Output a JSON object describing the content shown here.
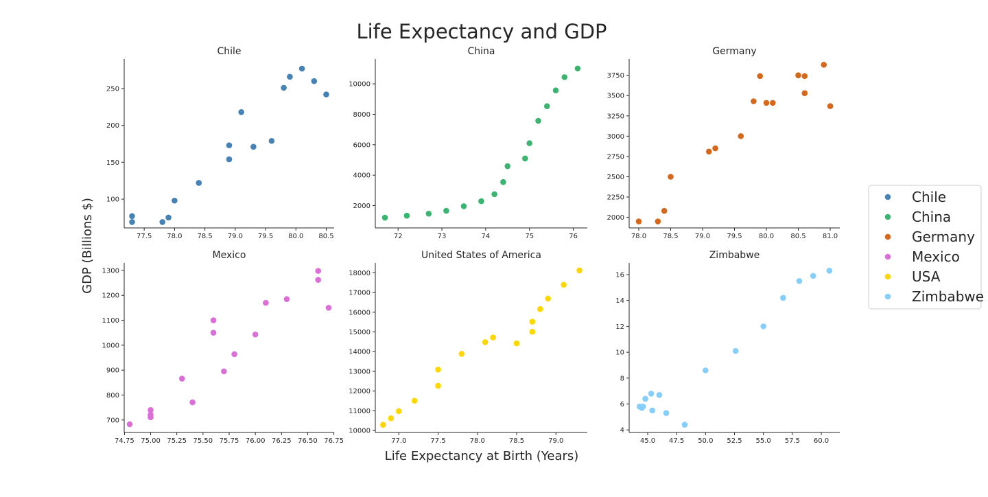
{
  "figure": {
    "title": "Life Expectancy and GDP",
    "xlabel": "Life Expectancy at Birth (Years)",
    "ylabel": "GDP (Billions $)"
  },
  "legend": {
    "placement": "right",
    "items": [
      {
        "label": "Chile",
        "color": "#4682b4"
      },
      {
        "label": "China",
        "color": "#3cb371"
      },
      {
        "label": "Germany",
        "color": "#d2691e"
      },
      {
        "label": "Mexico",
        "color": "#da70d6"
      },
      {
        "label": "USA",
        "color": "#ffd700"
      },
      {
        "label": "Zimbabwe",
        "color": "#87cefa"
      }
    ]
  },
  "chart_data": [
    {
      "type": "scatter",
      "title": "Chile",
      "color": "#4682b4",
      "xlim": [
        77.17,
        80.63
      ],
      "ylim": [
        61,
        290
      ],
      "xticks": [
        "77.5",
        "78.0",
        "78.5",
        "79.0",
        "79.5",
        "80.0",
        "80.5"
      ],
      "yticks": [
        "100",
        "150",
        "200",
        "250"
      ],
      "points": [
        [
          77.3,
          77
        ],
        [
          77.3,
          69
        ],
        [
          77.8,
          69
        ],
        [
          77.9,
          75
        ],
        [
          78.0,
          98
        ],
        [
          78.4,
          122
        ],
        [
          78.9,
          154
        ],
        [
          78.9,
          173
        ],
        [
          79.1,
          218
        ],
        [
          79.3,
          171
        ],
        [
          79.6,
          179
        ],
        [
          79.8,
          251
        ],
        [
          79.9,
          266
        ],
        [
          80.1,
          277
        ],
        [
          80.3,
          260
        ],
        [
          80.5,
          242
        ]
      ]
    },
    {
      "type": "scatter",
      "title": "China",
      "color": "#3cb371",
      "xlim": [
        71.48,
        76.32
      ],
      "ylim": [
        535,
        11630
      ],
      "xticks": [
        "72",
        "73",
        "74",
        "75",
        "76"
      ],
      "yticks": [
        "2000",
        "4000",
        "6000",
        "8000",
        "10000"
      ],
      "points": [
        [
          71.7,
          1210
        ],
        [
          72.2,
          1340
        ],
        [
          72.7,
          1470
        ],
        [
          73.1,
          1660
        ],
        [
          73.5,
          1960
        ],
        [
          73.9,
          2290
        ],
        [
          74.2,
          2750
        ],
        [
          74.4,
          3550
        ],
        [
          74.5,
          4590
        ],
        [
          74.9,
          5100
        ],
        [
          75.0,
          6100
        ],
        [
          75.2,
          7570
        ],
        [
          75.4,
          8530
        ],
        [
          75.6,
          9570
        ],
        [
          75.8,
          10440
        ],
        [
          76.1,
          11010
        ]
      ]
    },
    {
      "type": "scatter",
      "title": "Germany",
      "color": "#d2691e",
      "xlim": [
        77.85,
        81.15
      ],
      "ylim": [
        1870,
        3950
      ],
      "xticks": [
        "78.0",
        "78.5",
        "79.0",
        "79.5",
        "80.0",
        "80.5",
        "81.0"
      ],
      "yticks": [
        "2000",
        "2250",
        "2500",
        "2750",
        "3000",
        "3250",
        "3500",
        "3750"
      ],
      "points": [
        [
          78.0,
          1950
        ],
        [
          78.3,
          1950
        ],
        [
          78.4,
          2080
        ],
        [
          78.5,
          2500
        ],
        [
          79.1,
          2810
        ],
        [
          79.2,
          2850
        ],
        [
          79.6,
          3000
        ],
        [
          79.8,
          3430
        ],
        [
          79.9,
          3740
        ],
        [
          80.0,
          3410
        ],
        [
          80.1,
          3410
        ],
        [
          80.5,
          3750
        ],
        [
          80.6,
          3740
        ],
        [
          80.6,
          3530
        ],
        [
          80.9,
          3880
        ],
        [
          81.0,
          3370
        ]
      ]
    },
    {
      "type": "scatter",
      "title": "Mexico",
      "color": "#da70d6",
      "xlim": [
        74.7475,
        76.7525
      ],
      "ylim": [
        650,
        1330
      ],
      "xticks": [
        "74.75",
        "75.00",
        "75.25",
        "75.50",
        "75.75",
        "76.00",
        "76.25",
        "76.50",
        "76.75"
      ],
      "yticks": [
        "700",
        "800",
        "900",
        "1000",
        "1100",
        "1200",
        "1300"
      ],
      "points": [
        [
          74.8,
          683
        ],
        [
          75.0,
          711
        ],
        [
          75.0,
          721
        ],
        [
          75.0,
          740
        ],
        [
          75.3,
          866
        ],
        [
          75.4,
          771
        ],
        [
          75.6,
          1050
        ],
        [
          75.6,
          1100
        ],
        [
          75.7,
          895
        ],
        [
          75.8,
          964
        ],
        [
          76.0,
          1043
        ],
        [
          76.1,
          1170
        ],
        [
          76.3,
          1185
        ],
        [
          76.6,
          1262
        ],
        [
          76.6,
          1298
        ],
        [
          76.7,
          1150
        ]
      ]
    },
    {
      "type": "scatter",
      "title": "United States of America",
      "color": "#ffd700",
      "xlim": [
        76.7,
        79.4
      ],
      "ylim": [
        9900,
        18500
      ],
      "xticks": [
        "77.0",
        "77.5",
        "78.0",
        "78.5",
        "79.0"
      ],
      "yticks": [
        "10000",
        "11000",
        "12000",
        "13000",
        "14000",
        "15000",
        "16000",
        "17000",
        "18000"
      ],
      "points": [
        [
          76.8,
          10290
        ],
        [
          76.9,
          10620
        ],
        [
          77.0,
          10980
        ],
        [
          77.2,
          11510
        ],
        [
          77.5,
          12270
        ],
        [
          77.5,
          13090
        ],
        [
          77.8,
          13890
        ],
        [
          78.1,
          14480
        ],
        [
          78.2,
          14720
        ],
        [
          78.5,
          14420
        ],
        [
          78.7,
          15010
        ],
        [
          78.7,
          15520
        ],
        [
          78.8,
          16160
        ],
        [
          78.9,
          16690
        ],
        [
          79.1,
          17390
        ],
        [
          79.3,
          18120
        ]
      ]
    },
    {
      "type": "scatter",
      "title": "Zimbabwe",
      "color": "#87cefa",
      "xlim": [
        43.4,
        61.6
      ],
      "ylim": [
        3.8,
        16.9
      ],
      "xticks": [
        "45.0",
        "47.5",
        "50.0",
        "52.5",
        "55.0",
        "57.5",
        "60.0"
      ],
      "yticks": [
        "4",
        "6",
        "8",
        "10",
        "12",
        "14",
        "16"
      ],
      "points": [
        [
          44.3,
          5.8
        ],
        [
          44.5,
          5.7
        ],
        [
          44.6,
          5.8
        ],
        [
          44.8,
          6.4
        ],
        [
          45.3,
          6.8
        ],
        [
          45.4,
          5.5
        ],
        [
          46.0,
          6.7
        ],
        [
          46.6,
          5.3
        ],
        [
          48.2,
          4.4
        ],
        [
          50.0,
          8.6
        ],
        [
          52.6,
          10.1
        ],
        [
          55.0,
          12.0
        ],
        [
          56.7,
          14.2
        ],
        [
          58.1,
          15.5
        ],
        [
          59.3,
          15.9
        ],
        [
          60.7,
          16.3
        ]
      ]
    }
  ]
}
